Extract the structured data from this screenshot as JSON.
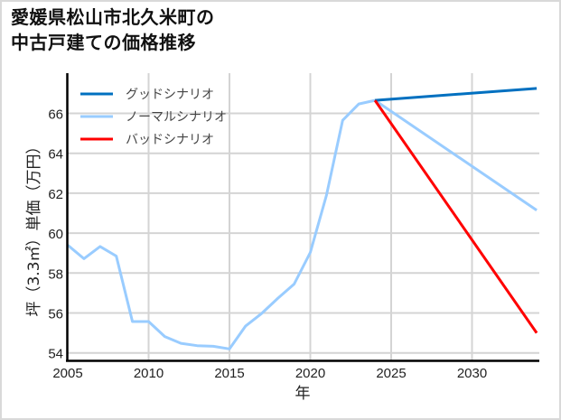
{
  "title": {
    "line1": "愛媛県松山市北久米町の",
    "line2": "中古戸建ての価格推移"
  },
  "chart_data": {
    "type": "line",
    "title": "愛媛県松山市北久米町の中古戸建ての価格推移",
    "xlabel": "年",
    "ylabel": "坪（3.3㎡）単価（万円）",
    "xlim": [
      2005,
      2034
    ],
    "ylim": [
      53.5,
      68.0
    ],
    "xticks": [
      2005,
      2010,
      2015,
      2020,
      2025,
      2030
    ],
    "yticks": [
      54,
      56,
      58,
      60,
      62,
      64,
      66
    ],
    "grid": true,
    "legend_position": "upper left",
    "series": [
      {
        "name": "グッドシナリオ",
        "color": "#0070C0",
        "x": [
          2024,
          2034
        ],
        "values": [
          66.65,
          67.25
        ]
      },
      {
        "name": "ノーマルシナリオ",
        "color": "#99CCFF",
        "x": [
          2005,
          2006,
          2007,
          2008,
          2009,
          2010,
          2011,
          2012,
          2013,
          2014,
          2015,
          2016,
          2017,
          2018,
          2019,
          2020,
          2021,
          2022,
          2023,
          2024,
          2034
        ],
        "values": [
          59.4,
          58.72,
          59.33,
          58.85,
          55.57,
          55.57,
          54.82,
          54.48,
          54.36,
          54.33,
          54.2,
          55.35,
          55.98,
          56.74,
          57.45,
          59.03,
          61.9,
          65.65,
          66.47,
          66.65,
          61.15
        ]
      },
      {
        "name": "バッドシナリオ",
        "color": "#FF0000",
        "x": [
          2024,
          2034
        ],
        "values": [
          66.65,
          55.0
        ]
      }
    ]
  },
  "colors": {
    "grid": "#d4d4d4",
    "axis": "#000000",
    "border": "#d9d9d9"
  }
}
